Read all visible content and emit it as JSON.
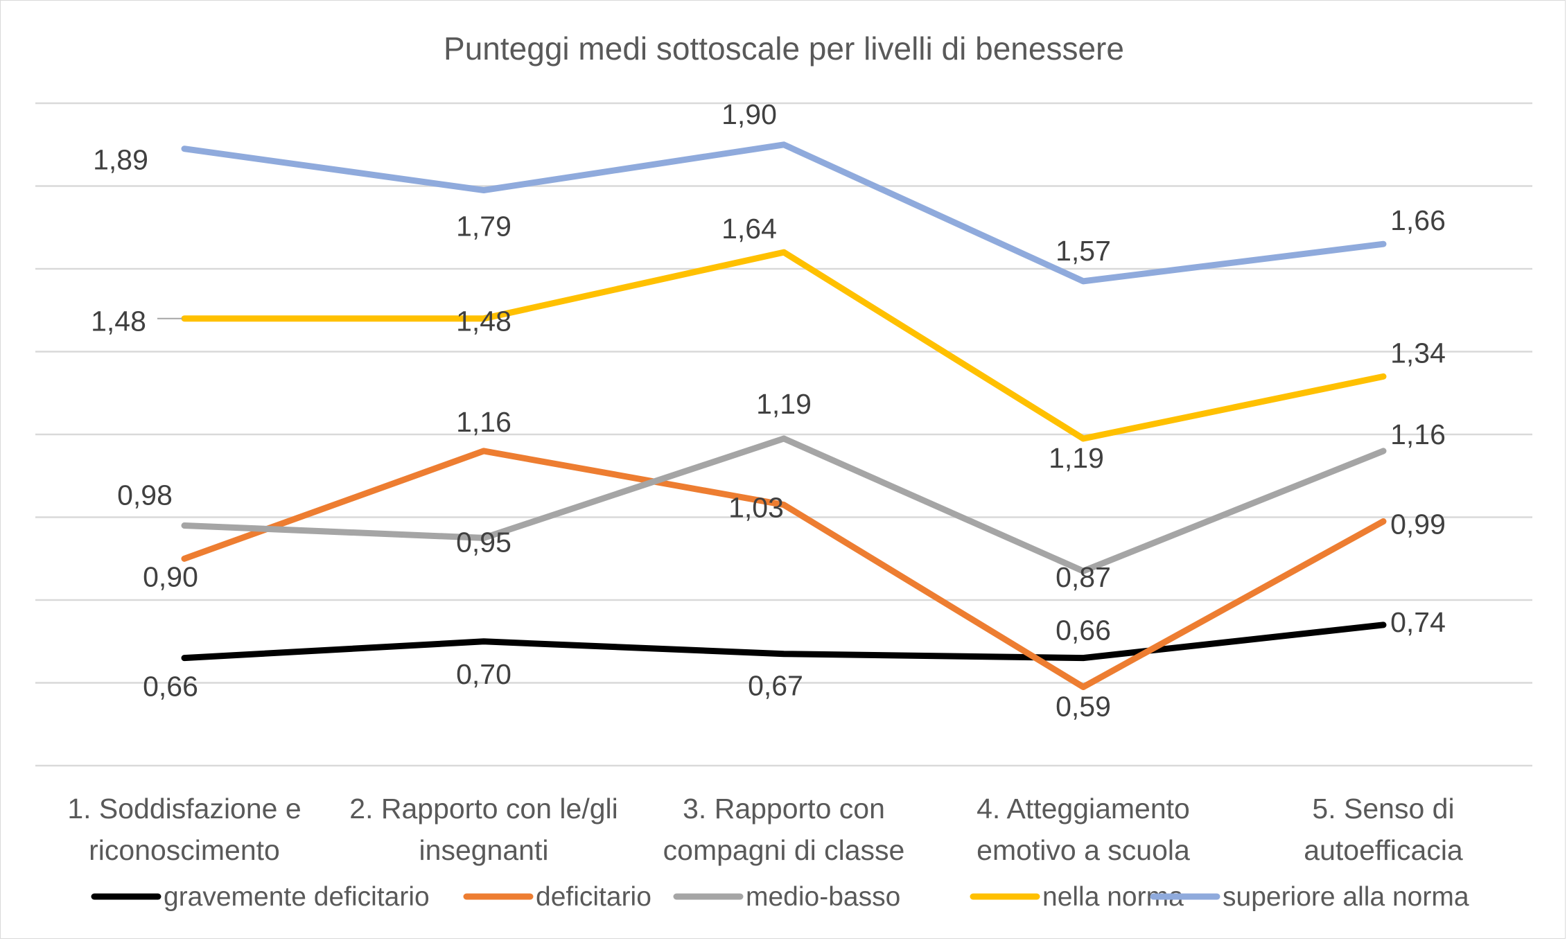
{
  "chart_data": {
    "type": "line",
    "title": "Punteggi medi sottoscale per livelli di benessere",
    "xlabel": "",
    "ylabel": "",
    "ylim": [
      0.4,
      2.0
    ],
    "grid": true,
    "legend_position": "bottom",
    "categories": [
      [
        "1. Soddisfazione e",
        "riconoscimento"
      ],
      [
        "2. Rapporto con le/gli",
        "insegnanti"
      ],
      [
        "3. Rapporto con",
        "compagni di classe"
      ],
      [
        "4. Atteggiamento",
        "emotivo a scuola"
      ],
      [
        "5. Senso di",
        "autoefficacia"
      ]
    ],
    "series": [
      {
        "name": "gravemente deficitario",
        "color": "#000000",
        "values": [
          0.66,
          0.7,
          0.67,
          0.66,
          0.74
        ],
        "labels": [
          "0,66",
          "0,70",
          "0,67",
          "0,66",
          "0,74"
        ]
      },
      {
        "name": "deficitario",
        "color": "#ED7D31",
        "values": [
          0.9,
          1.16,
          1.03,
          0.59,
          0.99
        ],
        "labels": [
          "0,90",
          "1,16",
          "1,03",
          "0,59",
          "0,99"
        ]
      },
      {
        "name": "medio-basso",
        "color": "#A5A5A5",
        "values": [
          0.98,
          0.95,
          1.19,
          0.87,
          1.16
        ],
        "labels": [
          "0,98",
          "0,95",
          "1,19",
          "0,87",
          "1,16"
        ]
      },
      {
        "name": "nella norma",
        "color": "#FFC000",
        "values": [
          1.48,
          1.48,
          1.64,
          1.19,
          1.34
        ],
        "labels": [
          "1,48",
          "1,48",
          "1,64",
          "1,19",
          "1,34"
        ]
      },
      {
        "name": "superiore alla norma",
        "color": "#8FAADC",
        "values": [
          1.89,
          1.79,
          1.9,
          1.57,
          1.66
        ],
        "labels": [
          "1,89",
          "1,79",
          "1,90",
          "1,57",
          "1,66"
        ]
      }
    ]
  }
}
